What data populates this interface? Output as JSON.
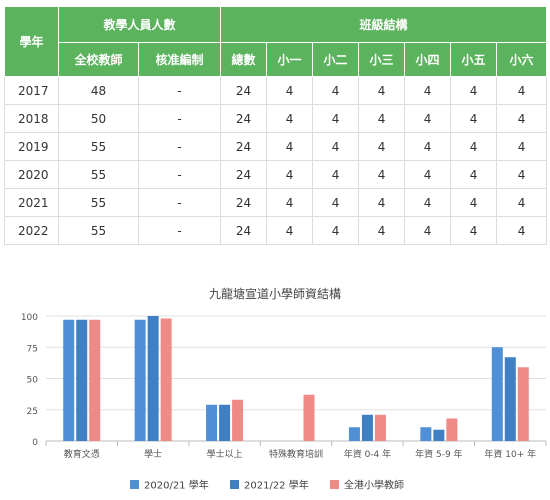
{
  "table": {
    "headers": {
      "year": "學年",
      "staff_group": "教學人員人數",
      "class_group": "班級結構",
      "total_teachers": "全校教師",
      "approved_establishment": "核准編制",
      "total_classes": "總數",
      "p1": "小一",
      "p2": "小二",
      "p3": "小三",
      "p4": "小四",
      "p5": "小五",
      "p6": "小六"
    },
    "rows": [
      {
        "year": "2017",
        "teachers": "48",
        "approved": "-",
        "total": "24",
        "p1": "4",
        "p2": "4",
        "p3": "4",
        "p4": "4",
        "p5": "4",
        "p6": "4"
      },
      {
        "year": "2018",
        "teachers": "50",
        "approved": "-",
        "total": "24",
        "p1": "4",
        "p2": "4",
        "p3": "4",
        "p4": "4",
        "p5": "4",
        "p6": "4"
      },
      {
        "year": "2019",
        "teachers": "55",
        "approved": "-",
        "total": "24",
        "p1": "4",
        "p2": "4",
        "p3": "4",
        "p4": "4",
        "p5": "4",
        "p6": "4"
      },
      {
        "year": "2020",
        "teachers": "55",
        "approved": "-",
        "total": "24",
        "p1": "4",
        "p2": "4",
        "p3": "4",
        "p4": "4",
        "p5": "4",
        "p6": "4"
      },
      {
        "year": "2021",
        "teachers": "55",
        "approved": "-",
        "total": "24",
        "p1": "4",
        "p2": "4",
        "p3": "4",
        "p4": "4",
        "p5": "4",
        "p6": "4"
      },
      {
        "year": "2022",
        "teachers": "55",
        "approved": "-",
        "total": "24",
        "p1": "4",
        "p2": "4",
        "p3": "4",
        "p4": "4",
        "p5": "4",
        "p6": "4"
      }
    ]
  },
  "colors": {
    "header_green": "#5cb35d",
    "series_2020_21": "#4f8fd6",
    "series_2021_22": "#3f7fc4",
    "series_hk": "#f08a86"
  },
  "chart_data": {
    "type": "bar",
    "title": "九龍塘宣道小學師資結構",
    "categories": [
      "教育文憑",
      "學士",
      "學士以上",
      "特殊教育培訓",
      "年資 0-4 年",
      "年資 5-9 年",
      "年資 10+ 年"
    ],
    "series": [
      {
        "name": "2020/21 學年",
        "values": [
          97,
          97,
          29,
          0,
          11,
          11,
          75
        ],
        "color": "#4f8fd6"
      },
      {
        "name": "2021/22 學年",
        "values": [
          97,
          100,
          29,
          0,
          21,
          9,
          67
        ],
        "color": "#3f7fc4"
      },
      {
        "name": "全港小學教師",
        "values": [
          97,
          98,
          33,
          37,
          21,
          18,
          59
        ],
        "color": "#f08a86"
      }
    ],
    "yticks": [
      "0",
      "25",
      "50",
      "75",
      "100"
    ],
    "ylim": [
      0,
      100
    ],
    "legend": "bottom",
    "grid": true
  }
}
